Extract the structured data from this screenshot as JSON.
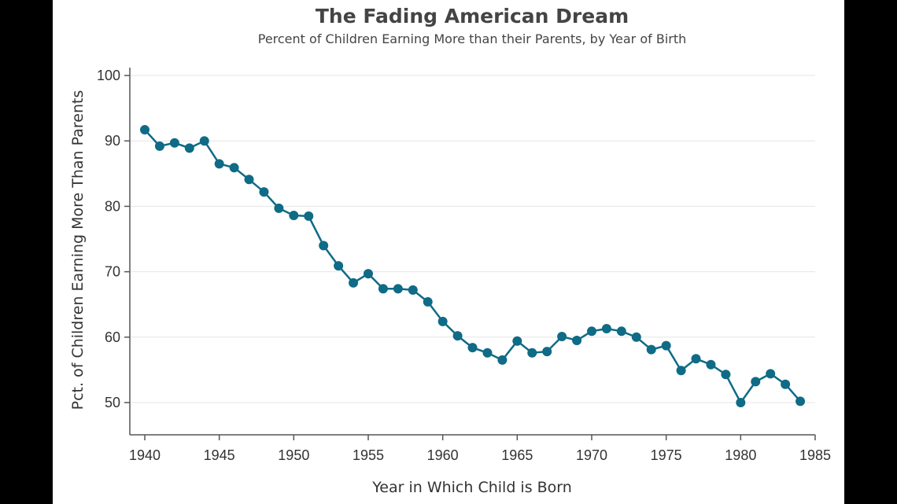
{
  "chart_data": {
    "type": "line",
    "title": "The Fading American Dream",
    "subtitle": "Percent of Children Earning More than their Parents, by Year of Birth",
    "xlabel": "Year in Which Child is Born",
    "ylabel": "Pct. of Children Earning More Than Parents",
    "xlim": [
      1939.2,
      1985
    ],
    "ylim": [
      45,
      101
    ],
    "xticks": [
      1940,
      1945,
      1950,
      1955,
      1960,
      1965,
      1970,
      1975,
      1980,
      1985
    ],
    "yticks": [
      50,
      60,
      70,
      80,
      90,
      100
    ],
    "grid": "horizontal",
    "color": "#0f6b86",
    "x": [
      1940,
      1941,
      1942,
      1943,
      1944,
      1945,
      1946,
      1947,
      1948,
      1949,
      1950,
      1951,
      1952,
      1953,
      1954,
      1955,
      1956,
      1957,
      1958,
      1959,
      1960,
      1961,
      1962,
      1963,
      1964,
      1965,
      1966,
      1967,
      1968,
      1969,
      1970,
      1971,
      1972,
      1973,
      1974,
      1975,
      1976,
      1977,
      1978,
      1979,
      1980,
      1981,
      1982,
      1983,
      1984
    ],
    "y": [
      91.7,
      89.2,
      89.7,
      88.9,
      90.0,
      86.5,
      85.9,
      84.1,
      82.2,
      79.7,
      78.6,
      78.5,
      74.0,
      70.9,
      68.3,
      69.7,
      67.4,
      67.4,
      67.2,
      65.4,
      62.4,
      60.2,
      58.4,
      57.6,
      56.5,
      59.4,
      57.6,
      57.8,
      60.1,
      59.5,
      60.9,
      61.3,
      60.9,
      60.0,
      58.1,
      58.7,
      54.9,
      56.7,
      55.8,
      54.3,
      50.0,
      53.2,
      54.4,
      52.8,
      50.2
    ]
  }
}
